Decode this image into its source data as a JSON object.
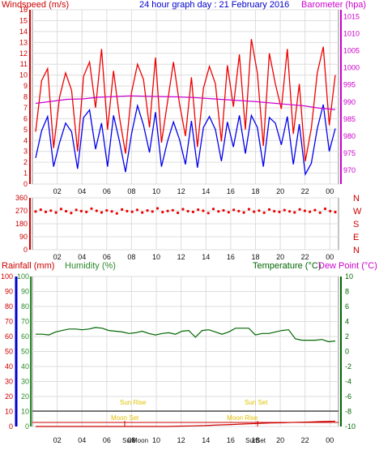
{
  "colors": {
    "wind_avg": "#0000ee",
    "wind_gust": "#ee0000",
    "barometer": "#cc00cc",
    "direction": "#ee0000",
    "humidity": "#2a8a2a",
    "rainfall": "#cc0000",
    "temperature": "#006600",
    "sun": "#e0c000",
    "moon": "#e0c000",
    "grid": "#dddddd"
  },
  "chart_data": [
    {
      "type": "line",
      "title": "24 hour graph day : 21 February 2016",
      "left_axis_label": "Windspeed (m/s)",
      "right_axis_label": "Barometer (hpa)",
      "x_ticks": [
        "02",
        "04",
        "06",
        "08",
        "10",
        "12",
        "14",
        "16",
        "18",
        "20",
        "22",
        "00"
      ],
      "left_ylim": [
        0,
        16
      ],
      "left_ticks": [
        "0",
        "1",
        "2",
        "3",
        "4",
        "5",
        "6",
        "7",
        "8",
        "9",
        "10",
        "11",
        "12",
        "13",
        "14",
        "15",
        "16"
      ],
      "right_ylim": [
        966,
        1017
      ],
      "right_ticks": [
        "970",
        "975",
        "980",
        "985",
        "990",
        "995",
        "1000",
        "1005",
        "1010",
        "1015"
      ],
      "series": [
        {
          "key": "wind_gust",
          "axis": "left",
          "values": [
            4.8,
            9.5,
            10.6,
            3.3,
            8.0,
            10.2,
            8.6,
            3.0,
            9.9,
            11.2,
            7.0,
            12.4,
            5.0,
            10.4,
            6.1,
            2.8,
            8.4,
            11.0,
            9.6,
            5.2,
            11.6,
            3.8,
            7.5,
            11.2,
            7.4,
            4.4,
            9.8,
            3.4,
            8.8,
            10.8,
            9.2,
            3.9,
            10.9,
            7.1,
            11.9,
            5.0,
            13.3,
            10.2,
            3.5,
            12.0,
            9.2,
            6.9,
            12.4,
            4.6,
            9.2,
            2.1,
            5.1,
            10.2,
            12.6,
            5.4,
            10.0
          ]
        },
        {
          "key": "wind_avg",
          "axis": "left",
          "values": [
            2.4,
            4.9,
            6.2,
            1.6,
            3.8,
            5.6,
            4.8,
            1.4,
            6.1,
            6.8,
            3.2,
            5.6,
            1.6,
            6.3,
            3.9,
            1.1,
            4.6,
            7.2,
            5.4,
            2.9,
            6.6,
            1.6,
            3.9,
            5.7,
            4.1,
            1.8,
            5.8,
            1.5,
            5.2,
            6.2,
            5.0,
            2.1,
            5.7,
            3.4,
            6.3,
            2.8,
            6.3,
            5.2,
            1.6,
            6.1,
            5.6,
            3.6,
            6.2,
            1.8,
            5.5,
            0.9,
            1.9,
            5.1,
            7.3,
            3.0,
            5.1
          ]
        },
        {
          "key": "barometer",
          "axis": "right",
          "values": [
            989.6,
            990.2,
            990.8,
            990.9,
            991.4,
            991.6,
            991.8,
            991.7,
            991.6,
            991.5,
            991.3,
            991.0,
            990.7,
            990.4,
            990.1,
            989.7,
            989.3,
            988.9,
            988.2,
            987.8
          ]
        }
      ]
    },
    {
      "type": "scatter",
      "series_name": "Wind direction",
      "right_labels": [
        "N",
        "W",
        "S",
        "E",
        "N"
      ],
      "ylim": [
        0,
        360
      ],
      "y_ticks": [
        "0",
        "90",
        "180",
        "270",
        "360"
      ],
      "x_ticks": [
        "02",
        "04",
        "06",
        "08",
        "10",
        "12",
        "14",
        "16",
        "18",
        "20",
        "22",
        "00"
      ],
      "values": [
        265,
        278,
        262,
        271,
        258,
        283,
        267,
        255,
        276,
        268,
        262,
        285,
        270,
        259,
        273,
        266,
        252,
        279,
        268,
        263,
        276,
        258,
        272,
        265,
        287,
        261,
        269,
        274,
        256,
        281,
        267,
        262,
        278,
        270,
        254,
        283,
        266,
        273,
        260,
        276,
        268,
        258,
        281,
        264,
        271,
        257,
        279,
        267,
        262,
        275,
        266,
        259,
        280,
        270,
        263,
        275,
        257,
        284,
        268,
        261
      ]
    },
    {
      "type": "line",
      "left_label_1": "Rainfall (mm)",
      "left_label_2": "Humidity (%)",
      "right_label_1": "Temperature (°C)",
      "right_label_2": "Dew Point (°C)",
      "rain_ylim": [
        0,
        100
      ],
      "rain_ticks": [
        "0",
        "10",
        "20",
        "30",
        "40",
        "50",
        "60",
        "70",
        "80",
        "90",
        "100"
      ],
      "humidity_ticks": [
        "0",
        "10",
        "20",
        "30",
        "40",
        "50",
        "60",
        "70",
        "80",
        "90",
        "100"
      ],
      "temp_ylim": [
        -10,
        10
      ],
      "temp_ticks": [
        "10",
        "8",
        "6",
        "4",
        "2",
        "0",
        "-2",
        "-4",
        "-6",
        "-8",
        "-10"
      ],
      "x_ticks": [
        "02",
        "04",
        "06",
        "08",
        "10",
        "12",
        "14",
        "16",
        "18",
        "20",
        "22",
        "00"
      ],
      "temperature": [
        2.3,
        2.3,
        2.2,
        2.6,
        2.8,
        3.0,
        3.0,
        2.9,
        3.0,
        3.2,
        3.1,
        2.8,
        2.7,
        2.6,
        2.4,
        2.5,
        2.7,
        2.4,
        2.2,
        2.4,
        2.5,
        2.3,
        2.7,
        2.8,
        1.9,
        2.8,
        2.9,
        2.6,
        2.3,
        2.6,
        3.1,
        3.1,
        3.1,
        2.2,
        2.4,
        2.4,
        2.6,
        2.8,
        2.9,
        1.7,
        1.5,
        1.5,
        1.5,
        1.6,
        1.3,
        1.4
      ],
      "rainfall": [
        0.0,
        0.0,
        0.0,
        0.0,
        0.0,
        0.0,
        0.0,
        0.0,
        0.0,
        0.0,
        0.0,
        0.2,
        0.4,
        0.6,
        1.0,
        1.3,
        1.7,
        2.0,
        2.3,
        2.5,
        2.8,
        3.0,
        3.3,
        3.5
      ],
      "annotations": {
        "sun_rise": "Sun Rise",
        "sun_set": "Sun Set",
        "moon_set": "Moon Set",
        "moon_rise": "Moon Rise",
        "sun_marker_1": "Sun",
        "sun_marker_2": "Sun",
        "moon_marker": "Moon",
        "set_marker": "Set"
      }
    }
  ]
}
